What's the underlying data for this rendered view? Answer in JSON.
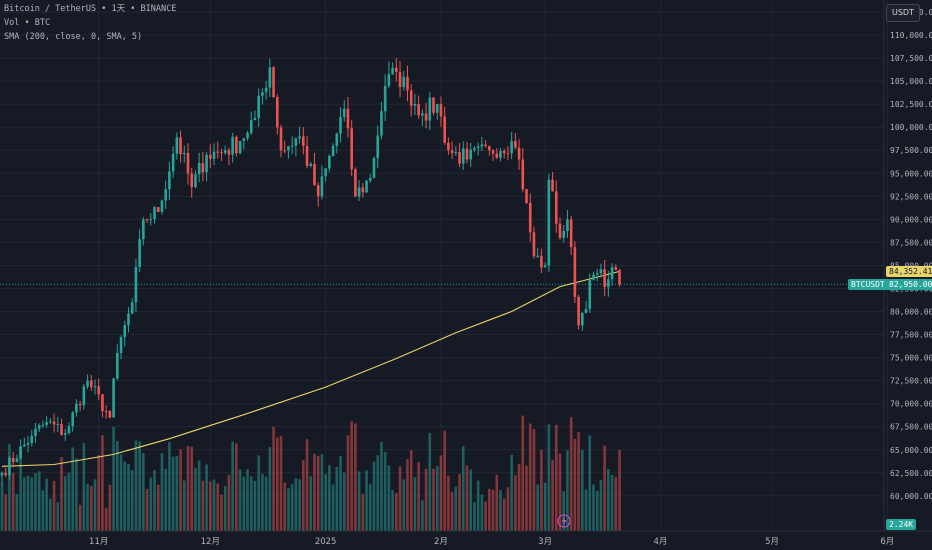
{
  "header": {
    "symbol": "Bitcoin / TetherUS",
    "interval": "1天",
    "exchange": "BINANCE",
    "dot": "•",
    "vol_label": "Vol",
    "vol_asset": "BTC",
    "sma_label": "SMA (200, close, 0, SMA, 5)"
  },
  "currency_button": "USDT",
  "price_axis": {
    "ticks": [
      {
        "value": 112500,
        "label": "112,500.00"
      },
      {
        "value": 110000,
        "label": "110,000.00"
      },
      {
        "value": 107500,
        "label": "107,500.00"
      },
      {
        "value": 105000,
        "label": "105,000.00"
      },
      {
        "value": 102500,
        "label": "102,500.00"
      },
      {
        "value": 100000,
        "label": "100,000.00"
      },
      {
        "value": 97500,
        "label": "97,500.00"
      },
      {
        "value": 95000,
        "label": "95,000.00"
      },
      {
        "value": 92500,
        "label": "92,500.00"
      },
      {
        "value": 90000,
        "label": "90,000.00"
      },
      {
        "value": 87500,
        "label": "87,500.00"
      },
      {
        "value": 85000,
        "label": "85,000.00"
      },
      {
        "value": 82500,
        "label": "82,500.00"
      },
      {
        "value": 80000,
        "label": "80,000.00"
      },
      {
        "value": 77500,
        "label": "77,500.00"
      },
      {
        "value": 75000,
        "label": "75,000.00"
      },
      {
        "value": 72500,
        "label": "72,500.00"
      },
      {
        "value": 70000,
        "label": "70,000.00"
      },
      {
        "value": 67500,
        "label": "67,500.00"
      },
      {
        "value": 65000,
        "label": "65,000.00"
      },
      {
        "value": 62500,
        "label": "62,500.00"
      },
      {
        "value": 60000,
        "label": "60,000.00"
      }
    ]
  },
  "time_axis": {
    "labels": [
      {
        "date": "2024-11-01",
        "label": "11月"
      },
      {
        "date": "2024-12-01",
        "label": "12月"
      },
      {
        "date": "2025-01-01",
        "label": "2025"
      },
      {
        "date": "2025-02-01",
        "label": "2月"
      },
      {
        "date": "2025-03-01",
        "label": "3月"
      },
      {
        "date": "2025-04-01",
        "label": "4月"
      },
      {
        "date": "2025-05-01",
        "label": "5月"
      },
      {
        "date": "2025-06-01",
        "label": "6月"
      }
    ]
  },
  "price_labels": {
    "sma_value": "84,352.41",
    "symbol_tag": "BTCUSDT",
    "last_price": "82,950.00",
    "volume_value": "2.24K"
  },
  "colors": {
    "background": "#161a25",
    "up": "#26a69a",
    "down": "#ef5350",
    "sma": "#e8d56a",
    "grid": "#232733"
  },
  "chart_data": {
    "type": "candlestick",
    "title": "Bitcoin / TetherUS • 1天 • BINANCE",
    "start_date": "2024-10-06",
    "ylim": [
      60000,
      113500
    ],
    "grid": true,
    "series": [
      {
        "name": "Vol",
        "type": "bar"
      },
      {
        "name": "SMA (200, close, 0, SMA, 5)",
        "type": "line"
      }
    ],
    "anchors": [
      [
        "2024-10-06",
        62500
      ],
      [
        "2024-10-14",
        66500
      ],
      [
        "2024-10-18",
        68000
      ],
      [
        "2024-10-23",
        66800
      ],
      [
        "2024-10-29",
        72500
      ],
      [
        "2024-11-04",
        68500
      ],
      [
        "2024-11-06",
        75500
      ],
      [
        "2024-11-10",
        81000
      ],
      [
        "2024-11-13",
        90000
      ],
      [
        "2024-11-17",
        90800
      ],
      [
        "2024-11-22",
        98900
      ],
      [
        "2024-11-26",
        93500
      ],
      [
        "2024-11-30",
        97000
      ],
      [
        "2024-12-05",
        97500
      ],
      [
        "2024-12-09",
        98500
      ],
      [
        "2024-12-13",
        101000
      ],
      [
        "2024-12-17",
        106500
      ],
      [
        "2024-12-20",
        97500
      ],
      [
        "2024-12-25",
        99000
      ],
      [
        "2024-12-30",
        92500
      ],
      [
        "2025-01-06",
        102000
      ],
      [
        "2025-01-09",
        92500
      ],
      [
        "2025-01-13",
        94500
      ],
      [
        "2025-01-17",
        104500
      ],
      [
        "2025-01-20",
        106000
      ],
      [
        "2025-01-23",
        104000
      ],
      [
        "2025-01-27",
        101500
      ],
      [
        "2025-01-31",
        102500
      ],
      [
        "2025-02-03",
        97500
      ],
      [
        "2025-02-08",
        96500
      ],
      [
        "2025-02-14",
        97500
      ],
      [
        "2025-02-20",
        98500
      ],
      [
        "2025-02-22",
        96500
      ],
      [
        "2025-02-26",
        86000
      ],
      [
        "2025-03-01",
        85000
      ],
      [
        "2025-03-02",
        94300
      ],
      [
        "2025-03-05",
        88000
      ],
      [
        "2025-03-07",
        90000
      ],
      [
        "2025-03-10",
        78500
      ],
      [
        "2025-03-14",
        84000
      ],
      [
        "2025-03-18",
        83500
      ],
      [
        "2025-03-20",
        84500
      ],
      [
        "2025-03-21",
        82950
      ]
    ],
    "sma": [
      [
        "2024-10-06",
        63200
      ],
      [
        "2024-10-20",
        63400
      ],
      [
        "2024-11-05",
        64500
      ],
      [
        "2024-11-20",
        66200
      ],
      [
        "2024-12-10",
        68800
      ],
      [
        "2025-01-01",
        71800
      ],
      [
        "2025-01-20",
        74900
      ],
      [
        "2025-02-05",
        77700
      ],
      [
        "2025-02-20",
        80000
      ],
      [
        "2025-03-05",
        82700
      ],
      [
        "2025-03-21",
        84352.41
      ]
    ],
    "last_price": 82950,
    "last_volume": "2.24K"
  }
}
